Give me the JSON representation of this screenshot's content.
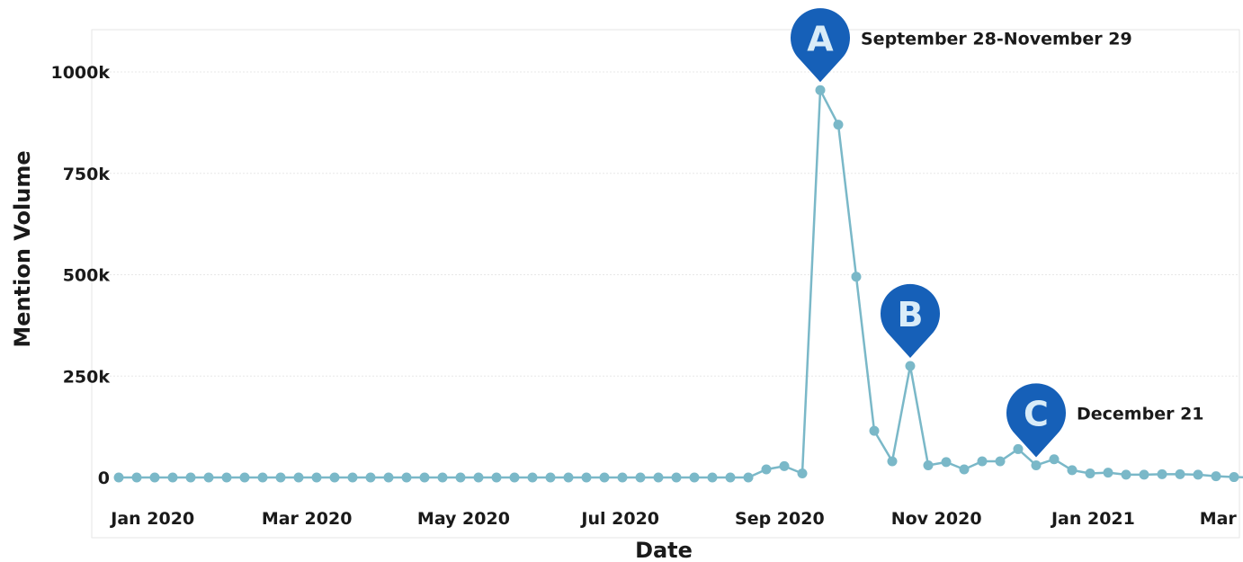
{
  "chart_data": {
    "type": "line",
    "title": "",
    "xlabel": "Date",
    "ylabel": "Mention Volume",
    "x_ticks": [
      "Jan 2020",
      "Mar 2020",
      "May 2020",
      "Jul 2020",
      "Sep 2020",
      "Nov 2020",
      "Jan 2021",
      "Mar 2021"
    ],
    "y_ticks": [
      "0",
      "250k",
      "500k",
      "750k",
      "1000k"
    ],
    "ylim": [
      0,
      1000000
    ],
    "grid": "horizontal",
    "line_color": "#7ab8c8",
    "marker_color": "#1660b8",
    "series": [
      {
        "x": [
          "2019-12-30",
          "2020-01-06",
          "2020-01-13",
          "2020-01-20",
          "2020-01-27",
          "2020-02-03",
          "2020-02-10",
          "2020-02-17",
          "2020-02-24",
          "2020-03-02",
          "2020-03-09",
          "2020-03-16",
          "2020-03-23",
          "2020-03-30",
          "2020-04-06",
          "2020-04-13",
          "2020-04-20",
          "2020-04-27",
          "2020-05-04",
          "2020-05-11",
          "2020-05-18",
          "2020-05-25",
          "2020-06-01",
          "2020-06-08",
          "2020-06-15",
          "2020-06-22",
          "2020-06-29",
          "2020-07-06",
          "2020-07-13",
          "2020-07-20",
          "2020-07-27",
          "2020-08-03",
          "2020-08-10",
          "2020-08-17",
          "2020-08-24",
          "2020-08-31",
          "2020-09-07",
          "2020-09-14",
          "2020-09-21",
          "2020-09-28",
          "2020-10-05",
          "2020-10-12",
          "2020-10-19",
          "2020-10-26",
          "2020-11-02",
          "2020-11-09",
          "2020-11-16",
          "2020-11-23",
          "2020-11-30",
          "2020-12-07",
          "2020-12-14",
          "2020-12-21",
          "2020-12-28",
          "2021-01-04",
          "2021-01-11",
          "2021-01-18",
          "2021-01-25",
          "2021-02-01",
          "2021-02-08",
          "2021-02-15",
          "2021-02-22",
          "2021-03-01",
          "2021-03-08",
          "2021-03-15",
          "2021-03-22"
        ],
        "values": [
          0,
          0,
          0,
          0,
          0,
          0,
          0,
          0,
          0,
          0,
          0,
          0,
          0,
          0,
          0,
          0,
          0,
          0,
          0,
          0,
          0,
          0,
          0,
          0,
          0,
          0,
          0,
          0,
          0,
          0,
          0,
          0,
          0,
          0,
          0,
          0,
          20000,
          28000,
          10000,
          955000,
          870000,
          495000,
          115000,
          40000,
          275000,
          30000,
          38000,
          20000,
          40000,
          40000,
          70000,
          30000,
          45000,
          18000,
          10000,
          12000,
          7000,
          7000,
          8000,
          8000,
          7000,
          3000,
          1000,
          0,
          0
        ]
      }
    ],
    "annotations": [
      {
        "marker": "A",
        "text": "September 28-November 29",
        "at_index": 39
      },
      {
        "marker": "B",
        "text": "",
        "at_index": 44
      },
      {
        "marker": "C",
        "text": "December 21",
        "at_index": 51
      }
    ]
  }
}
